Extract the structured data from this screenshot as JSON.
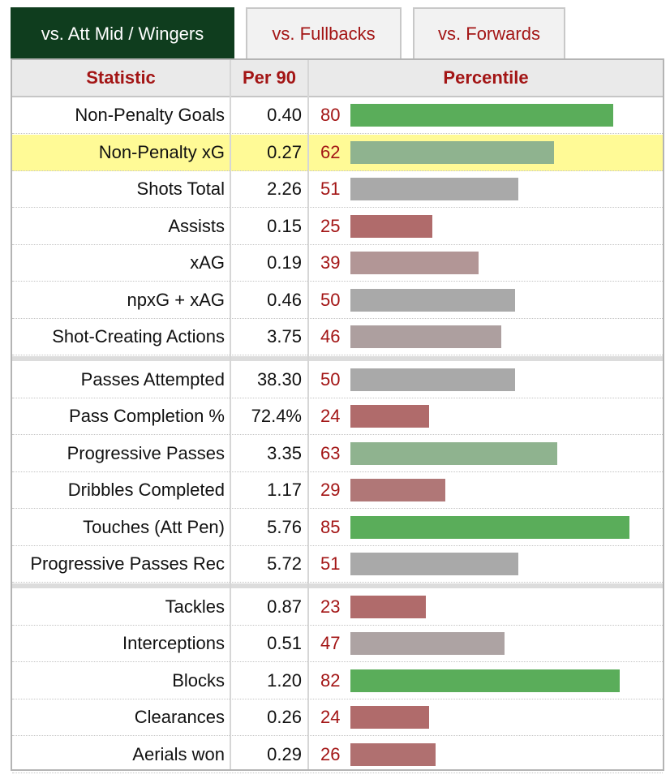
{
  "tabs": [
    {
      "label": "vs. Att Mid / Wingers",
      "active": true
    },
    {
      "label": "vs. Fullbacks",
      "active": false
    },
    {
      "label": "vs. Forwards",
      "active": false
    }
  ],
  "table": {
    "headers": {
      "statistic": "Statistic",
      "per90": "Per 90",
      "percentile": "Percentile"
    },
    "groups": [
      [
        {
          "stat": "Non-Penalty Goals",
          "per90": "0.40",
          "percentile": 80,
          "bar_color": "#5aad5a"
        },
        {
          "stat": "Non-Penalty xG",
          "per90": "0.27",
          "percentile": 62,
          "bar_color": "#8fb38f",
          "highlight": true
        },
        {
          "stat": "Shots Total",
          "per90": "2.26",
          "percentile": 51,
          "bar_color": "#a9a9a9"
        },
        {
          "stat": "Assists",
          "per90": "0.15",
          "percentile": 25,
          "bar_color": "#b06b6b"
        },
        {
          "stat": "xAG",
          "per90": "0.19",
          "percentile": 39,
          "bar_color": "#b29696"
        },
        {
          "stat": "npxG + xAG",
          "per90": "0.46",
          "percentile": 50,
          "bar_color": "#a9a9a9"
        },
        {
          "stat": "Shot-Creating Actions",
          "per90": "3.75",
          "percentile": 46,
          "bar_color": "#ad9f9f"
        }
      ],
      [
        {
          "stat": "Passes Attempted",
          "per90": "38.30",
          "percentile": 50,
          "bar_color": "#a9a9a9"
        },
        {
          "stat": "Pass Completion %",
          "per90": "72.4%",
          "percentile": 24,
          "bar_color": "#b06b6b"
        },
        {
          "stat": "Progressive Passes",
          "per90": "3.35",
          "percentile": 63,
          "bar_color": "#8fb38f"
        },
        {
          "stat": "Dribbles Completed",
          "per90": "1.17",
          "percentile": 29,
          "bar_color": "#b07777"
        },
        {
          "stat": "Touches (Att Pen)",
          "per90": "5.76",
          "percentile": 85,
          "bar_color": "#5aad5a"
        },
        {
          "stat": "Progressive Passes Rec",
          "per90": "5.72",
          "percentile": 51,
          "bar_color": "#a9a9a9"
        }
      ],
      [
        {
          "stat": "Tackles",
          "per90": "0.87",
          "percentile": 23,
          "bar_color": "#b06b6b"
        },
        {
          "stat": "Interceptions",
          "per90": "0.51",
          "percentile": 47,
          "bar_color": "#ada3a3"
        },
        {
          "stat": "Blocks",
          "per90": "1.20",
          "percentile": 82,
          "bar_color": "#5aad5a"
        },
        {
          "stat": "Clearances",
          "per90": "0.26",
          "percentile": 24,
          "bar_color": "#b06b6b"
        },
        {
          "stat": "Aerials won",
          "per90": "0.29",
          "percentile": 26,
          "bar_color": "#b07070"
        }
      ]
    ]
  }
}
